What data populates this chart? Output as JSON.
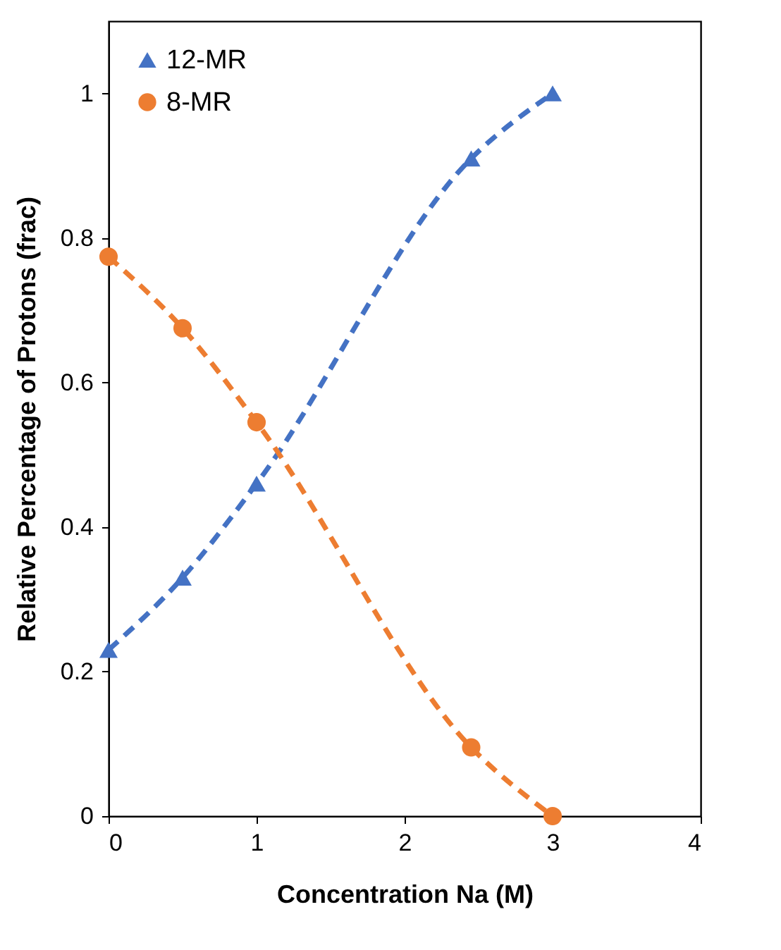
{
  "chart_data": {
    "type": "line",
    "xlabel": "Concentration Na (M)",
    "ylabel": "Relative Percentage of Protons (frac)",
    "x": [
      0,
      0.5,
      1,
      2.45,
      3
    ],
    "series": [
      {
        "name": "12-MR",
        "color": "#4472c4",
        "marker": "triangle",
        "values": [
          0.23,
          0.33,
          0.46,
          0.91,
          1.0
        ]
      },
      {
        "name": "8-MR",
        "color": "#ed7d31",
        "marker": "circle",
        "values": [
          0.774,
          0.675,
          0.545,
          0.095,
          0.0
        ]
      }
    ],
    "xlim": [
      0,
      4
    ],
    "xticks": [
      0,
      1,
      2,
      3,
      4
    ],
    "ylim": [
      0,
      1.1
    ],
    "yticks": [
      0,
      0.2,
      0.4,
      0.6,
      0.8,
      1
    ],
    "grid": false,
    "legend": "top left",
    "line_style": "dashed"
  }
}
